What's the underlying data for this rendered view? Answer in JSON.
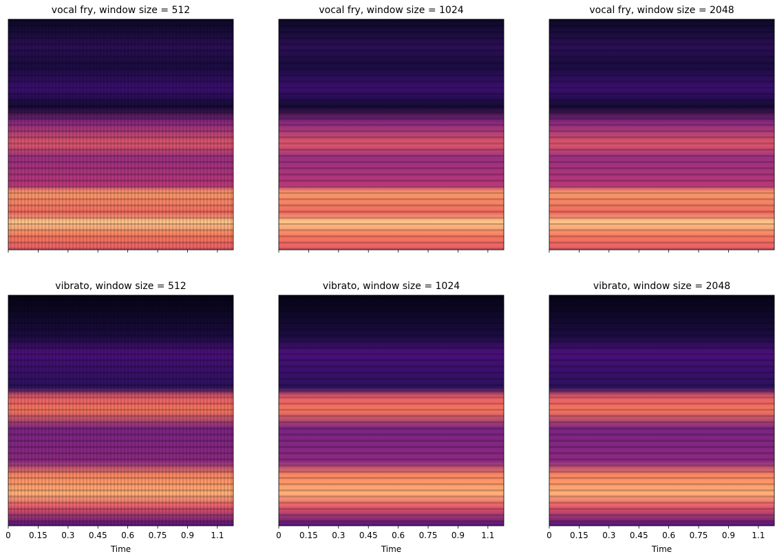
{
  "chart_data": [
    {
      "type": "spectrogram",
      "title": "vocal fry, window size = 512",
      "xlim": [
        0,
        1.13
      ],
      "xticks": [
        0,
        0.15,
        0.3,
        0.45,
        0.6,
        0.75,
        0.9,
        1.05
      ]
    },
    {
      "type": "spectrogram",
      "title": "vocal fry, window size = 1024",
      "xlim": [
        0,
        1.13
      ],
      "xticks": [
        0,
        0.15,
        0.3,
        0.45,
        0.6,
        0.75,
        0.9,
        1.05
      ]
    },
    {
      "type": "spectrogram",
      "title": "vocal fry, window size = 2048",
      "xlim": [
        0,
        1.13
      ],
      "xticks": [
        0,
        0.15,
        0.3,
        0.45,
        0.6,
        0.75,
        0.9,
        1.05
      ]
    },
    {
      "type": "spectrogram",
      "title": "vibrato, window size = 512",
      "xlabel": "Time",
      "xlim": [
        0,
        1.13
      ],
      "xticks": [
        0,
        0.15,
        0.3,
        0.45,
        0.6,
        0.75,
        0.9,
        {
          "value": 1.05,
          "label": "1.1"
        }
      ]
    },
    {
      "type": "spectrogram",
      "title": "vibrato, window size = 1024",
      "xlabel": "Time",
      "xlim": [
        0,
        1.13
      ],
      "xticks": [
        0,
        0.15,
        0.3,
        0.45,
        0.6,
        0.75,
        0.9,
        {
          "value": 1.05,
          "label": "1.1"
        }
      ]
    },
    {
      "type": "spectrogram",
      "title": "vibrato, window size = 2048",
      "xlabel": "Time",
      "xlim": [
        0,
        1.13
      ],
      "xticks": [
        0,
        0.15,
        0.3,
        0.45,
        0.6,
        0.75,
        0.9,
        {
          "value": 1.05,
          "label": "1.1"
        }
      ]
    }
  ]
}
